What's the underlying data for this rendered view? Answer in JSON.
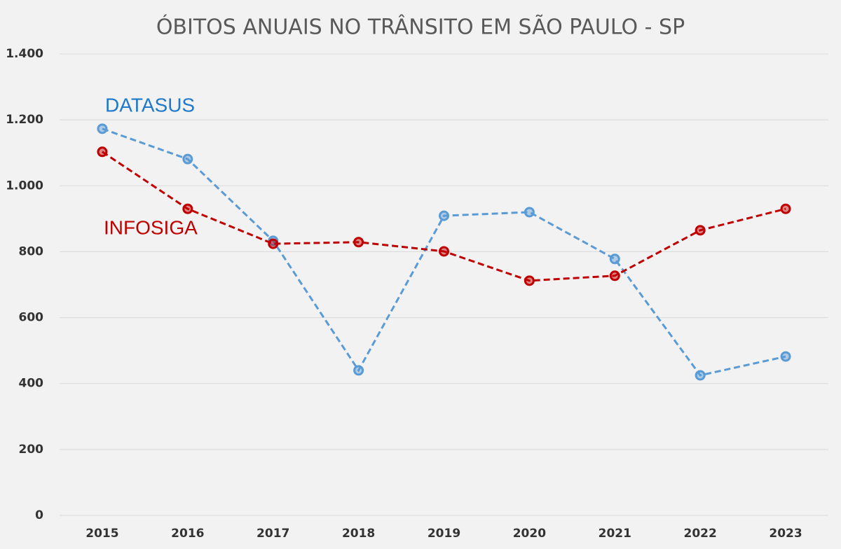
{
  "chart_data": {
    "type": "line",
    "title": "ÓBITOS ANUAIS NO TRÂNSITO EM SÃO PAULO - SP",
    "categories": [
      "2015",
      "2016",
      "2017",
      "2018",
      "2019",
      "2020",
      "2021",
      "2022",
      "2023"
    ],
    "series": [
      {
        "name": "DATASUS",
        "color": "#5b9bd5",
        "values": [
          1173,
          1081,
          833,
          440,
          909,
          920,
          778,
          425,
          482
        ]
      },
      {
        "name": "INFOSIGA",
        "color": "#c00000",
        "values": [
          1103,
          930,
          824,
          829,
          801,
          712,
          727,
          865,
          930
        ]
      }
    ],
    "ylim": [
      0,
      1400
    ],
    "yticks": [
      0,
      200,
      400,
      600,
      800,
      {
        "value": 1000,
        "label": "1.000"
      },
      {
        "value": 1200,
        "label": "1.200"
      },
      {
        "value": 1400,
        "label": "1.400"
      }
    ],
    "grid": true
  }
}
